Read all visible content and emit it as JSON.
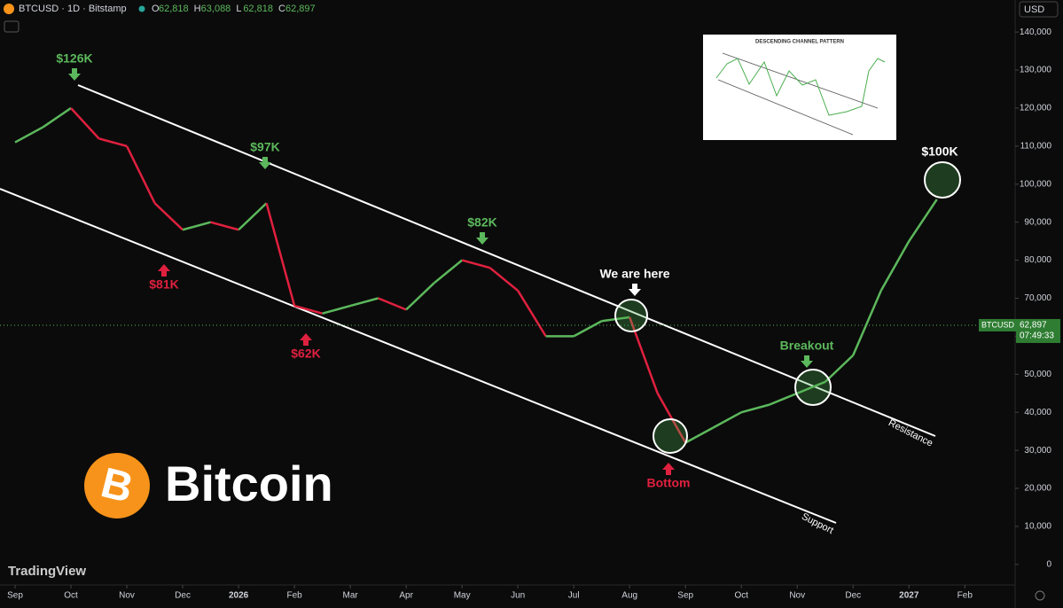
{
  "chart_data": {
    "type": "line",
    "header": {
      "symbol": "BTCUSD · 1D · Bitstamp",
      "ohlc": [
        {
          "key": "O",
          "value": "62,818"
        },
        {
          "key": "H",
          "value": "63,088"
        },
        {
          "key": "L",
          "value": "62,818"
        },
        {
          "key": "C",
          "value": "62,897"
        }
      ],
      "currency": "USD"
    },
    "series": [
      {
        "name": "BTCUSD",
        "up_color": "#5cb85c",
        "down_color": "#e0203f",
        "x": [
          0,
          0.5,
          1,
          1.5,
          2,
          2.5,
          3,
          3.5,
          4,
          4.5,
          5,
          5.5,
          6,
          6.5,
          7,
          7.5,
          8,
          8.5,
          9,
          9.5,
          10,
          10.5,
          11,
          11.5,
          12,
          12.5,
          13,
          13.5,
          14,
          14.5,
          15,
          15.5,
          16,
          16.5
        ],
        "values": [
          111000,
          115000,
          120000,
          112000,
          110000,
          95000,
          88000,
          90000,
          88000,
          95000,
          68000,
          66000,
          68000,
          70000,
          67000,
          74000,
          80000,
          78000,
          72000,
          60000,
          60000,
          64000,
          65000,
          45000,
          32000,
          36000,
          40000,
          42000,
          45000,
          48000,
          55000,
          72000,
          85000,
          96000
        ]
      }
    ],
    "last_price": {
      "name": "BTCUSD",
      "value": 62897,
      "label": "62,897",
      "countdown": "07:49:33"
    },
    "xlim": [
      -0.27,
      17.9
    ],
    "xticks": [
      {
        "value": 0,
        "label": "Sep"
      },
      {
        "value": 1,
        "label": "Oct"
      },
      {
        "value": 2,
        "label": "Nov"
      },
      {
        "value": 3,
        "label": "Dec"
      },
      {
        "value": 4,
        "label": "2026"
      },
      {
        "value": 5,
        "label": "Feb"
      },
      {
        "value": 6,
        "label": "Mar"
      },
      {
        "value": 7,
        "label": "Apr"
      },
      {
        "value": 8,
        "label": "May"
      },
      {
        "value": 9,
        "label": "Jun"
      },
      {
        "value": 10,
        "label": "Jul"
      },
      {
        "value": 11,
        "label": "Aug"
      },
      {
        "value": 12,
        "label": "Sep"
      },
      {
        "value": 13,
        "label": "Oct"
      },
      {
        "value": 14,
        "label": "Nov"
      },
      {
        "value": 15,
        "label": "Dec"
      },
      {
        "value": 16,
        "label": "2027"
      },
      {
        "value": 17,
        "label": "Feb"
      }
    ],
    "ylim": [
      -5400,
      143300
    ],
    "yticks": [
      0,
      {
        "value": 10000,
        "label": "10,000"
      },
      {
        "value": 20000,
        "label": "20,000"
      },
      {
        "value": 30000,
        "label": "30,000"
      },
      {
        "value": 40000,
        "label": "40,000"
      },
      {
        "value": 50000,
        "label": "50,000"
      },
      {
        "value": 60000,
        "label": "60,000"
      },
      {
        "value": 70000,
        "label": "70,000"
      },
      {
        "value": 80000,
        "label": "80,000"
      },
      {
        "value": 90000,
        "label": "90,000"
      },
      {
        "value": 100000,
        "label": "100,000"
      },
      {
        "value": 110000,
        "label": "110,000"
      },
      {
        "value": 120000,
        "label": "120,000"
      },
      {
        "value": 130000,
        "label": "130,000"
      },
      {
        "value": 140000,
        "label": "140,000"
      }
    ],
    "annotations": [
      "$126K",
      "$97K",
      "$81K",
      "$62K",
      "$82K",
      "We are here",
      "Breakout",
      "Bottom",
      "$100K",
      "Resistance",
      "Support"
    ],
    "inset_title": "DESCENDING CHANNEL PATTERN",
    "brand": {
      "symbol": "B",
      "name": "Bitcoin",
      "watermark": "TradingView"
    }
  }
}
